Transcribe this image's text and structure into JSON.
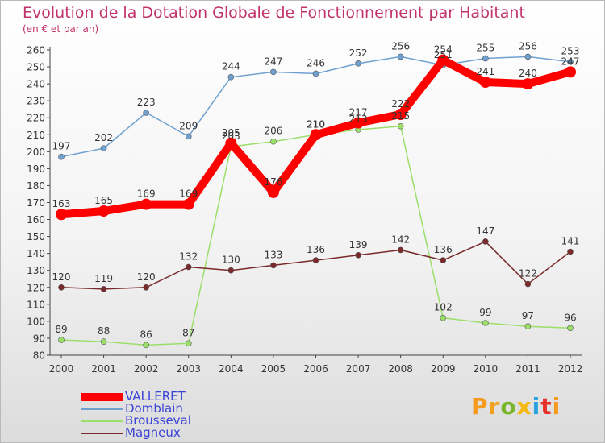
{
  "title": "Evolution de la Dotation Globale de Fonctionnement par Habitant",
  "subtitle": "(en € et par an)",
  "logo": {
    "text": "Proxiti",
    "colors": [
      "#f59a1c",
      "#f0a21e",
      "#7ab62c",
      "#f4b915",
      "#29a3df",
      "#e6302a",
      "#f59a1c"
    ]
  },
  "chart_data": {
    "type": "line",
    "title": "Evolution de la Dotation Globale de Fonctionnement par Habitant",
    "subtitle": "(en € et par an)",
    "xlabel": "",
    "ylabel": "",
    "x": [
      "2000",
      "2001",
      "2002",
      "2003",
      "2004",
      "2005",
      "2006",
      "2007",
      "2008",
      "2009",
      "2010",
      "2011",
      "2012"
    ],
    "ylim": [
      80,
      260
    ],
    "yticks": [
      80,
      90,
      100,
      110,
      120,
      130,
      140,
      150,
      160,
      170,
      180,
      190,
      200,
      210,
      220,
      230,
      240,
      250,
      260
    ],
    "grid": false,
    "legend_position": "bottom-left",
    "series": [
      {
        "name": "VALLERET",
        "color": "#ff0000",
        "values": [
          163,
          165,
          169,
          169,
          205,
          176,
          210,
          217,
          222,
          254,
          241,
          240,
          247
        ]
      },
      {
        "name": "Domblain",
        "color": "#6fa1d0",
        "values": [
          197,
          202,
          223,
          209,
          244,
          247,
          246,
          252,
          256,
          251,
          255,
          256,
          253
        ]
      },
      {
        "name": "Brousseval",
        "color": "#9bde6a",
        "values": [
          89,
          88,
          86,
          87,
          203,
          206,
          210,
          213,
          215,
          102,
          99,
          97,
          96
        ]
      },
      {
        "name": "Magneux",
        "color": "#7a2a2a",
        "values": [
          120,
          119,
          120,
          132,
          130,
          133,
          136,
          139,
          142,
          136,
          147,
          122,
          141
        ]
      }
    ]
  }
}
